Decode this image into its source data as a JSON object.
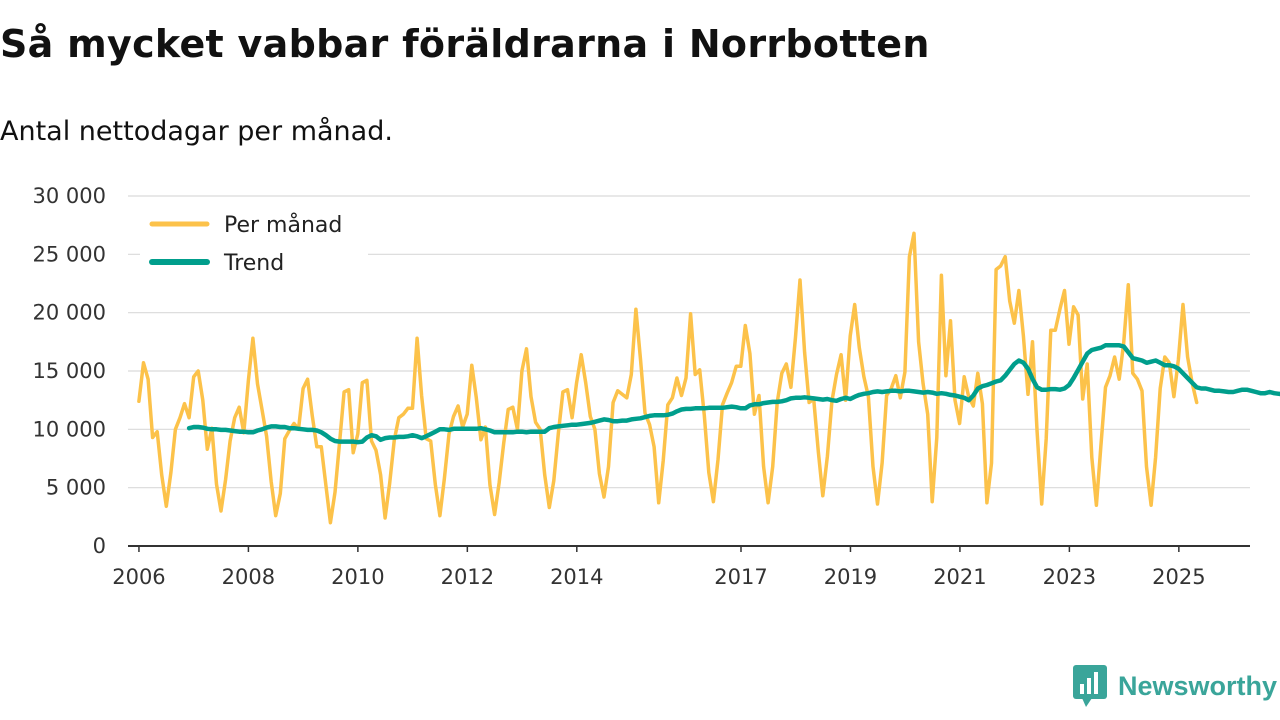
{
  "title": "Så mycket vabbar föräldrarna i Norrbotten",
  "subtitle": "Antal nettodagar per månad.",
  "brand": {
    "name": "Newsworthy",
    "color": "#3aa59a",
    "icon": "bar-chart-speech-bubble-icon"
  },
  "chart_data": {
    "type": "line",
    "title": "Så mycket vabbar föräldrarna i Norrbotten",
    "subtitle": "Antal nettodagar per månad.",
    "xlabel": "",
    "ylabel": "",
    "ylim": [
      0,
      30000
    ],
    "xlim": [
      2005.8,
      2026.3
    ],
    "grid": true,
    "legend_position": "top-left",
    "yticks": [
      {
        "value": 0,
        "label": "0"
      },
      {
        "value": 5000,
        "label": "5 000"
      },
      {
        "value": 10000,
        "label": "10 000"
      },
      {
        "value": 15000,
        "label": "15 000"
      },
      {
        "value": 20000,
        "label": "20 000"
      },
      {
        "value": 25000,
        "label": "25 000"
      },
      {
        "value": 30000,
        "label": "30 000"
      }
    ],
    "xticks": [
      {
        "value": 2006,
        "label": "2006"
      },
      {
        "value": 2008,
        "label": "2008"
      },
      {
        "value": 2010,
        "label": "2010"
      },
      {
        "value": 2012,
        "label": "2012"
      },
      {
        "value": 2014,
        "label": "2014"
      },
      {
        "value": 2017,
        "label": "2017"
      },
      {
        "value": 2019,
        "label": "2019"
      },
      {
        "value": 2021,
        "label": "2021"
      },
      {
        "value": 2023,
        "label": "2023"
      },
      {
        "value": 2025,
        "label": "2025"
      }
    ],
    "series": [
      {
        "name": "Per månad",
        "color": "#fcc24a",
        "start": 2006.0,
        "step": 0.0833,
        "values": [
          12400,
          15700,
          14300,
          9300,
          9800,
          6100,
          3400,
          6300,
          10000,
          11000,
          12200,
          11000,
          14500,
          15000,
          12500,
          8300,
          10100,
          5300,
          3000,
          5700,
          9000,
          11000,
          11900,
          9700,
          14200,
          17800,
          13900,
          11700,
          9400,
          5500,
          2600,
          4500,
          9200,
          9900,
          10500,
          10000,
          13500,
          14300,
          11200,
          8500,
          8500,
          5200,
          2000,
          4600,
          8800,
          13200,
          13400,
          8000,
          9600,
          14000,
          14200,
          9000,
          8200,
          6100,
          2400,
          5400,
          9100,
          11000,
          11300,
          11800,
          11800,
          17800,
          12900,
          9200,
          9000,
          5300,
          2600,
          5800,
          9600,
          11100,
          12000,
          10200,
          11300,
          15500,
          12700,
          9100,
          10200,
          5200,
          2700,
          5400,
          8800,
          11700,
          11900,
          10000,
          15000,
          16900,
          12800,
          10600,
          10000,
          6100,
          3300,
          5600,
          9700,
          13200,
          13400,
          11000,
          14000,
          16400,
          14000,
          11100,
          10000,
          6200,
          4200,
          6800,
          12300,
          13300,
          13000,
          12700,
          14700,
          20300,
          16000,
          11400,
          10400,
          8500,
          3700,
          7300,
          12100,
          12700,
          14400,
          12900,
          14400,
          19900,
          14700,
          15100,
          11200,
          6300,
          3800,
          7400,
          12100,
          13100,
          14000,
          15400,
          15400,
          18900,
          16500,
          11300,
          12900,
          6800,
          3700,
          6800,
          12300,
          14800,
          15600,
          13600,
          17900,
          22800,
          16600,
          12300,
          12600,
          8100,
          4300,
          7700,
          12400,
          14700,
          16400,
          12500,
          18000,
          20700,
          17000,
          14500,
          12800,
          6800,
          3600,
          7100,
          12900,
          13500,
          14600,
          12700,
          14900,
          24800,
          26800,
          17500,
          13900,
          11300,
          3800,
          9300,
          23200,
          14600,
          19300,
          12500,
          10500,
          14500,
          12800,
          12000,
          14800,
          12200,
          3700,
          7100,
          23700,
          24000,
          24800,
          21000,
          19100,
          21900,
          18000,
          13000,
          17500,
          9800,
          3600,
          9200,
          18500,
          18500,
          20300,
          21900,
          17300,
          20500,
          19800,
          12600,
          15600,
          7600,
          3500,
          8600,
          13600,
          14600,
          16200,
          14300,
          17400,
          22400,
          14800,
          14300,
          13300,
          6800,
          3500,
          7600,
          13500,
          16200,
          15700,
          12800,
          16000,
          20700,
          16200,
          14000,
          12300
        ]
      },
      {
        "name": "Trend",
        "color": "#009e8c",
        "start": 2006.917,
        "step": 0.0833,
        "values": [
          10100,
          10200,
          10200,
          10150,
          10050,
          10000,
          10000,
          9950,
          9950,
          9900,
          9850,
          9800,
          9800,
          9750,
          9750,
          9900,
          10000,
          10150,
          10250,
          10250,
          10200,
          10200,
          10100,
          10100,
          10050,
          10000,
          9950,
          9950,
          9900,
          9750,
          9500,
          9200,
          9000,
          8950,
          8950,
          8950,
          8950,
          8900,
          8950,
          9300,
          9500,
          9400,
          9100,
          9250,
          9300,
          9300,
          9350,
          9350,
          9400,
          9500,
          9400,
          9250,
          9400,
          9600,
          9800,
          10000,
          10000,
          9950,
          10050,
          10050,
          10050,
          10050,
          10050,
          10050,
          10100,
          10000,
          9900,
          9750,
          9750,
          9750,
          9750,
          9750,
          9800,
          9800,
          9750,
          9800,
          9800,
          9800,
          9800,
          10100,
          10200,
          10250,
          10300,
          10350,
          10400,
          10400,
          10450,
          10500,
          10550,
          10650,
          10750,
          10850,
          10800,
          10700,
          10700,
          10750,
          10750,
          10850,
          10900,
          10950,
          11050,
          11150,
          11200,
          11200,
          11200,
          11250,
          11350,
          11550,
          11700,
          11750,
          11750,
          11800,
          11800,
          11800,
          11850,
          11850,
          11850,
          11850,
          11900,
          11950,
          11900,
          11800,
          11800,
          12050,
          12150,
          12150,
          12250,
          12300,
          12350,
          12350,
          12400,
          12500,
          12650,
          12700,
          12700,
          12750,
          12700,
          12650,
          12600,
          12550,
          12600,
          12500,
          12450,
          12600,
          12700,
          12600,
          12800,
          12950,
          13050,
          13100,
          13200,
          13250,
          13200,
          13250,
          13300,
          13300,
          13250,
          13300,
          13300,
          13250,
          13200,
          13150,
          13200,
          13150,
          13050,
          13100,
          13050,
          12950,
          12900,
          12800,
          12700,
          12500,
          12900,
          13500,
          13700,
          13800,
          13950,
          14100,
          14200,
          14600,
          15100,
          15600,
          15900,
          15700,
          15200,
          14300,
          13600,
          13400,
          13400,
          13450,
          13450,
          13400,
          13500,
          13800,
          14400,
          15100,
          15800,
          16500,
          16800,
          16900,
          17000,
          17200,
          17200,
          17200,
          17200,
          17100,
          16600,
          16100,
          16000,
          15900,
          15700,
          15800,
          15900,
          15700,
          15500,
          15500,
          15400,
          15200,
          14800,
          14400,
          14000,
          13600,
          13500,
          13500,
          13400,
          13300,
          13300,
          13250,
          13200,
          13200,
          13300,
          13400,
          13400,
          13300,
          13200,
          13100,
          13100,
          13200,
          13100,
          13050,
          13000
        ]
      }
    ]
  }
}
